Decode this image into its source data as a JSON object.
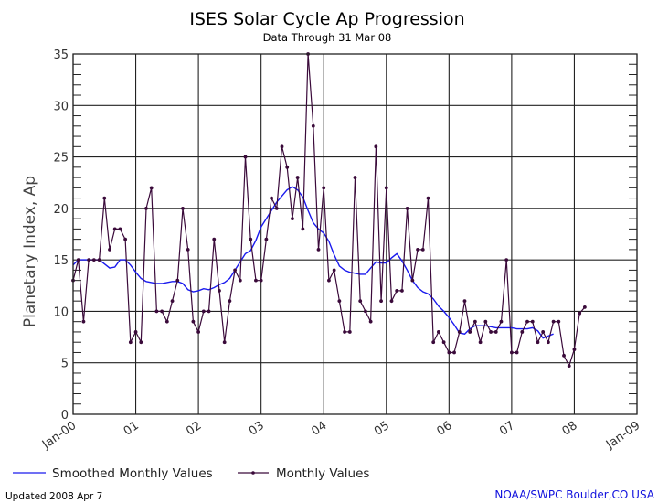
{
  "chart_data": {
    "type": "line",
    "title": "ISES Solar Cycle Ap Progression",
    "subtitle": "Data Through 31 Mar 08",
    "xlabel": "",
    "ylabel": "Planetary Index, Ap",
    "ylim": [
      0,
      35
    ],
    "xlim_months": [
      0,
      108
    ],
    "yticks": [
      0,
      5,
      10,
      15,
      20,
      25,
      30,
      35
    ],
    "xtick_labels": [
      "Jan-00",
      "01",
      "02",
      "03",
      "04",
      "05",
      "06",
      "07",
      "08",
      "Jan-09"
    ],
    "grid": true,
    "legend": {
      "position": "bottom-left",
      "entries": [
        "Smoothed Monthly Values",
        "Monthly Values"
      ]
    },
    "series": [
      {
        "name": "Monthly Values",
        "color": "#3a0a3a",
        "start": "2000-01",
        "values": [
          13,
          15,
          9,
          15,
          15,
          15,
          21,
          16,
          18,
          18,
          17,
          7,
          8,
          7,
          20,
          22,
          10,
          10,
          9,
          11,
          13,
          20,
          16,
          9,
          8,
          10,
          10,
          17,
          12,
          7,
          11,
          14,
          13,
          25,
          17,
          13,
          13,
          17,
          21,
          20,
          26,
          24,
          19,
          23,
          18,
          35,
          28,
          16,
          22,
          13,
          14,
          11,
          8,
          8,
          23,
          11,
          10,
          9,
          26,
          11,
          22,
          11,
          12,
          12,
          20,
          13,
          16,
          16,
          21,
          7,
          8,
          7,
          6,
          6,
          8,
          11,
          8,
          9,
          7,
          9,
          8,
          8,
          9,
          15,
          6,
          6,
          8,
          9,
          9,
          7,
          8,
          7,
          9,
          9,
          5.7,
          4.7,
          6.3,
          9.8,
          10.4
        ]
      },
      {
        "name": "Smoothed Monthly Values",
        "color": "#1a1aee",
        "start": "2000-01",
        "values": [
          14.5,
          15,
          15,
          15,
          15,
          15,
          14.6,
          14.2,
          14.3,
          15,
          15,
          14.5,
          13.8,
          13.2,
          12.9,
          12.8,
          12.7,
          12.7,
          12.8,
          12.9,
          12.9,
          12.7,
          12.1,
          11.9,
          12.0,
          12.2,
          12.1,
          12.3,
          12.6,
          12.8,
          13.2,
          14.0,
          14.8,
          15.6,
          15.9,
          16.9,
          18.2,
          19.0,
          19.8,
          20.6,
          21.2,
          21.8,
          22.1,
          21.8,
          21.1,
          19.8,
          18.6,
          18.0,
          17.6,
          16.8,
          15.5,
          14.4,
          14.0,
          13.8,
          13.7,
          13.6,
          13.6,
          14.2,
          14.8,
          14.7,
          14.7,
          15.2,
          15.6,
          14.9,
          14.0,
          13.0,
          12.3,
          11.9,
          11.7,
          11.2,
          10.5,
          10.0,
          9.4,
          8.7,
          7.9,
          7.8,
          8.3,
          8.6,
          8.6,
          8.6,
          8.5,
          8.4,
          8.4,
          8.4,
          8.4,
          8.3,
          8.3,
          8.3,
          8.4,
          8.1,
          7.4,
          7.6,
          7.8
        ]
      }
    ]
  },
  "footer": {
    "updated": "Updated 2008 Apr  7",
    "credit": "NOAA/SWPC Boulder,CO USA"
  },
  "colors": {
    "credit": "#1010dd",
    "grid": "#222222"
  }
}
